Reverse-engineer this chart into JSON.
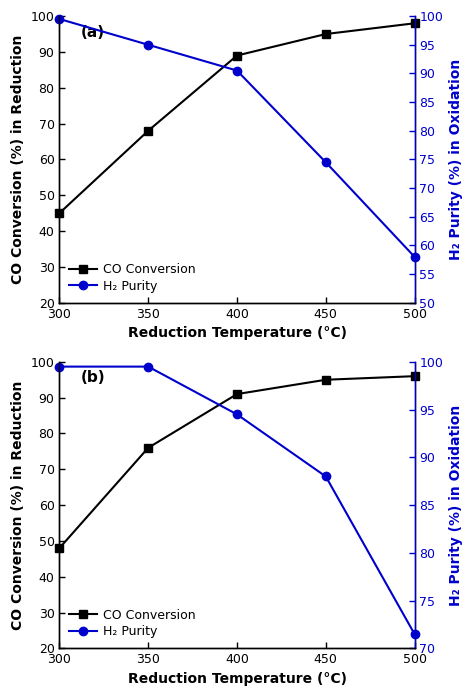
{
  "panel_a": {
    "label": "(a)",
    "x": [
      300,
      350,
      400,
      450,
      500
    ],
    "co_conversion": [
      45,
      68,
      89,
      95,
      98
    ],
    "h2_purity": [
      99.5,
      95.0,
      90.5,
      74.5,
      58.0
    ],
    "co_color": "#000000",
    "h2_color": "#0000cc",
    "left_ylim": [
      20,
      100
    ],
    "left_yticks": [
      20,
      30,
      40,
      50,
      60,
      70,
      80,
      90,
      100
    ],
    "right_ylim": [
      50,
      100
    ],
    "right_yticks": [
      50,
      55,
      60,
      65,
      70,
      75,
      80,
      85,
      90,
      95,
      100
    ]
  },
  "panel_b": {
    "label": "(b)",
    "x": [
      300,
      350,
      400,
      450,
      500
    ],
    "co_conversion": [
      48,
      76,
      91,
      95,
      96
    ],
    "h2_purity": [
      99.5,
      99.5,
      94.5,
      88.0,
      71.5
    ],
    "co_color": "#000000",
    "h2_color": "#0000cc",
    "left_ylim": [
      20,
      100
    ],
    "left_yticks": [
      20,
      30,
      40,
      50,
      60,
      70,
      80,
      90,
      100
    ],
    "right_ylim": [
      70,
      100
    ],
    "right_yticks": [
      70,
      75,
      80,
      85,
      90,
      95,
      100
    ]
  },
  "xlabel": "Reduction Temperature (°C)",
  "left_ylabel": "CO Conversion (%) in Reduction",
  "right_ylabel": "H₂ Purity (%) in Oxidation",
  "xticks": [
    300,
    350,
    400,
    450,
    500
  ],
  "legend_co": "CO Conversion",
  "legend_h2": "H₂ Purity",
  "marker_co": "s",
  "marker_h2": "o",
  "linewidth": 1.5,
  "markersize": 6,
  "fontsize_label": 10,
  "fontsize_tick": 9,
  "fontsize_legend": 9,
  "fontsize_panel": 11
}
